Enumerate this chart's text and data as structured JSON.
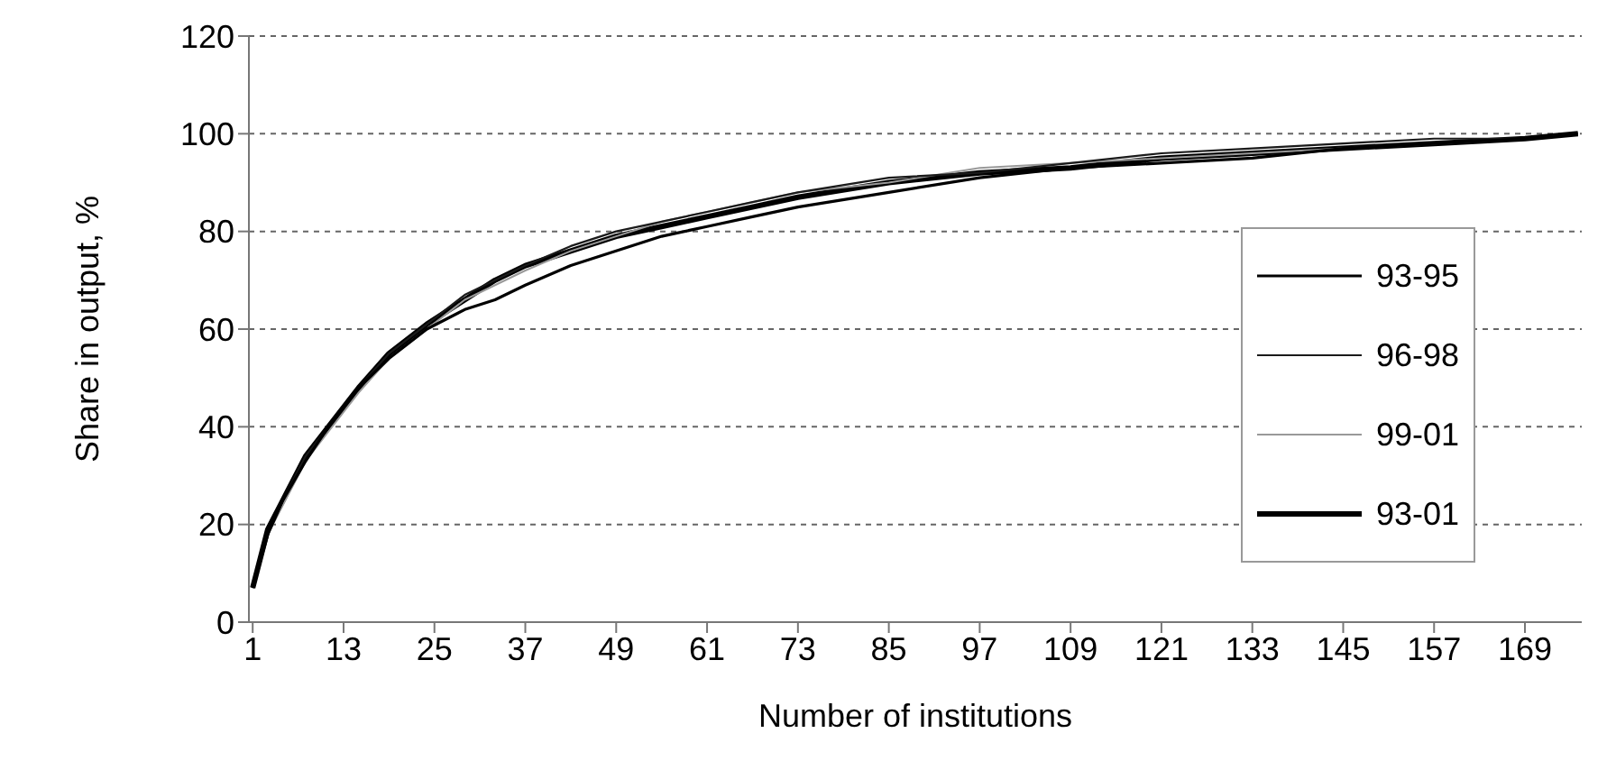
{
  "chart_data": {
    "type": "line",
    "xlabel": "Number of institutions",
    "ylabel": "Share in output, %",
    "xlim": [
      0.5,
      176.5
    ],
    "xticks": [
      1,
      13,
      25,
      37,
      49,
      61,
      73,
      85,
      97,
      109,
      121,
      133,
      145,
      157,
      169
    ],
    "ylim": [
      0,
      120
    ],
    "yticks": [
      0,
      20,
      40,
      60,
      80,
      100,
      120
    ],
    "x": [
      1,
      3,
      5,
      8,
      11,
      15,
      19,
      24,
      29,
      33,
      37,
      43,
      49,
      55,
      61,
      67,
      73,
      85,
      97,
      109,
      121,
      133,
      145,
      157,
      169,
      176
    ],
    "series": [
      {
        "name": "93-95",
        "color": "#000000",
        "values": [
          7,
          18,
          25,
          33,
          40,
          48,
          54,
          60,
          64,
          66,
          69,
          73,
          76,
          79,
          81,
          83,
          85,
          88,
          91,
          93,
          94,
          95,
          97,
          98,
          99,
          100
        ]
      },
      {
        "name": "96-98",
        "color": "#1a1a1a",
        "values": [
          7,
          18,
          25,
          34,
          40,
          48,
          55,
          61,
          67,
          70,
          73,
          77,
          80,
          82,
          84,
          86,
          88,
          91,
          92,
          94,
          96,
          97,
          98,
          99,
          99,
          100
        ]
      },
      {
        "name": "99-01",
        "color": "#999999",
        "values": [
          7,
          18,
          24,
          33,
          39,
          47,
          54,
          60,
          66,
          69,
          72,
          76,
          79,
          82,
          84,
          86,
          88,
          90,
          93,
          94,
          95,
          96,
          97,
          98,
          99,
          100
        ]
      },
      {
        "name": "93-01",
        "color": "#000000",
        "values": [
          7,
          19,
          25,
          34,
          40,
          48,
          55,
          61,
          66,
          70,
          73,
          76,
          79,
          81,
          83,
          85,
          87,
          90,
          92,
          93,
          95,
          96,
          97,
          98,
          99,
          100
        ]
      }
    ],
    "grid": "y",
    "legend": "right",
    "marker": "none",
    "line_style": "solid"
  }
}
